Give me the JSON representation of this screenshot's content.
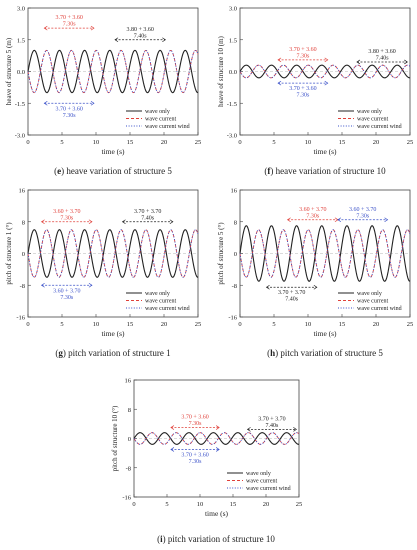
{
  "colors": {
    "wave_only": "#222222",
    "wave_current": "#e0403a",
    "wave_current_wind": "#3a50c8",
    "axis": "#444444",
    "zero_line": "#b5b5b5"
  },
  "chart_data": [
    {
      "id": "e",
      "type": "line",
      "caption_letter": "e",
      "caption": " heave variation of structure 5",
      "ylabel": "heave of structure 5 (m)",
      "xlabel": "time (s)",
      "xlim": [
        0,
        25
      ],
      "ylim": [
        -3.0,
        3.0
      ],
      "xticks": [
        0,
        5,
        10,
        15,
        20,
        25
      ],
      "yticks": [
        3.0,
        1.5,
        0.0,
        -1.5,
        -3.0
      ],
      "ytick_labels": [
        "3.0",
        "1.5",
        "0.0",
        "-1.5",
        "-3.0"
      ],
      "series": [
        {
          "name": "wave only",
          "style": "solid",
          "color_key": "wave_only",
          "amplitude": 1.0,
          "offset": 0.0,
          "period": 3.7,
          "phase": 0.0
        },
        {
          "name": "wave current",
          "style": "dash",
          "color_key": "wave_current",
          "amplitude": 1.0,
          "offset": 0.0,
          "period": 3.65,
          "phase": 0.5
        },
        {
          "name": "wave current wind",
          "style": "dot",
          "color_key": "wave_current_wind",
          "amplitude": 1.0,
          "offset": 0.0,
          "period": 3.65,
          "phase": 0.5
        }
      ],
      "annotations": [
        {
          "line1": "3.70 + 3.60",
          "line2": "7.30s",
          "color_key": "wave_current",
          "x1": 2.4,
          "x2": 9.7,
          "y": 2.05,
          "position": "above"
        },
        {
          "line1": "3.80 + 3.60",
          "line2": "7.40s",
          "color_key": "wave_only",
          "x1": 12.8,
          "x2": 20.2,
          "y": 1.5,
          "position": "above"
        },
        {
          "line1": "3.70 + 3.60",
          "line2": "7.30s",
          "color_key": "wave_current_wind",
          "x1": 2.4,
          "x2": 9.7,
          "y": -1.5,
          "position": "below"
        }
      ]
    },
    {
      "id": "f",
      "type": "line",
      "caption_letter": "f",
      "caption": " heave variation of structure 10",
      "ylabel": "heave of structure 10 (m)",
      "xlabel": "time (s)",
      "xlim": [
        0,
        25
      ],
      "ylim": [
        -3.0,
        3.0
      ],
      "xticks": [
        0,
        5,
        10,
        15,
        20,
        25
      ],
      "yticks": [
        3.0,
        1.5,
        0.0,
        -1.5,
        -3.0
      ],
      "ytick_labels": [
        "3.0",
        "1.5",
        "0.0",
        "-1.5",
        "-3.0"
      ],
      "series": [
        {
          "name": "wave only",
          "style": "solid",
          "color_key": "wave_only",
          "amplitude": 0.3,
          "offset": 0.0,
          "period": 3.7,
          "phase": 0.0
        },
        {
          "name": "wave current",
          "style": "dash",
          "color_key": "wave_current",
          "amplitude": 0.3,
          "offset": 0.0,
          "period": 3.65,
          "phase": 0.5
        },
        {
          "name": "wave current wind",
          "style": "dot",
          "color_key": "wave_current_wind",
          "amplitude": 0.3,
          "offset": 0.0,
          "period": 3.65,
          "phase": 0.5
        }
      ],
      "annotations": [
        {
          "line1": "3.70 + 3.60",
          "line2": "7.30s",
          "color_key": "wave_current",
          "x1": 5.6,
          "x2": 12.9,
          "y": 0.55,
          "position": "above"
        },
        {
          "line1": "3.80 + 3.60",
          "line2": "7.40s",
          "color_key": "wave_only",
          "x1": 17.2,
          "x2": 24.6,
          "y": 0.45,
          "position": "above"
        },
        {
          "line1": "3.70 + 3.60",
          "line2": "7.30s",
          "color_key": "wave_current_wind",
          "x1": 5.6,
          "x2": 12.9,
          "y": -0.55,
          "position": "below"
        }
      ]
    },
    {
      "id": "g",
      "type": "line",
      "caption_letter": "g",
      "caption": " pitch variation of structure 1",
      "ylabel": "pitch of structure 1 (°)",
      "xlabel": "time (s)",
      "xlim": [
        0,
        25
      ],
      "ylim": [
        -16,
        16
      ],
      "xticks": [
        0,
        5,
        10,
        15,
        20,
        25
      ],
      "yticks": [
        16,
        8,
        0,
        -8,
        -16
      ],
      "ytick_labels": [
        "16",
        "8",
        "0",
        "-8",
        "-16"
      ],
      "series": [
        {
          "name": "wave only",
          "style": "solid",
          "color_key": "wave_only",
          "amplitude": 6.0,
          "offset": 0.0,
          "period": 3.7,
          "phase": 0.0
        },
        {
          "name": "wave current",
          "style": "dash",
          "color_key": "wave_current",
          "amplitude": 6.0,
          "offset": 0.0,
          "period": 3.65,
          "phase": 0.5
        },
        {
          "name": "wave current wind",
          "style": "dot",
          "color_key": "wave_current_wind",
          "amplitude": 6.0,
          "offset": 0.0,
          "period": 3.65,
          "phase": 0.5
        }
      ],
      "annotations": [
        {
          "line1": "3.60 + 3.70",
          "line2": "7.30s",
          "color_key": "wave_current",
          "x1": 2.0,
          "x2": 9.4,
          "y": 8.0,
          "position": "above"
        },
        {
          "line1": "3.70 + 3.70",
          "line2": "7.40s",
          "color_key": "wave_only",
          "x1": 13.9,
          "x2": 21.3,
          "y": 8.0,
          "position": "above"
        },
        {
          "line1": "3.60 + 3.70",
          "line2": "7.30s",
          "color_key": "wave_current_wind",
          "x1": 2.0,
          "x2": 9.4,
          "y": -8.0,
          "position": "below"
        }
      ]
    },
    {
      "id": "h",
      "type": "line",
      "caption_letter": "h",
      "caption": " pitch variation of structure 5",
      "ylabel": "pitch of structure 5 (°)",
      "xlabel": "time (s)",
      "xlim": [
        0,
        25
      ],
      "ylim": [
        -16,
        16
      ],
      "xticks": [
        0,
        5,
        10,
        15,
        20,
        25
      ],
      "yticks": [
        16,
        8,
        0,
        -8,
        -16
      ],
      "ytick_labels": [
        "16",
        "8",
        "0",
        "-8",
        "-16"
      ],
      "series": [
        {
          "name": "wave only",
          "style": "solid",
          "color_key": "wave_only",
          "amplitude": 7.0,
          "offset": 0.0,
          "period": 3.7,
          "phase": 0.0
        },
        {
          "name": "wave current",
          "style": "dash",
          "color_key": "wave_current",
          "amplitude": 6.0,
          "offset": 0.0,
          "period": 3.65,
          "phase": 0.5
        },
        {
          "name": "wave current wind",
          "style": "dot",
          "color_key": "wave_current_wind",
          "amplitude": 6.0,
          "offset": 0.0,
          "period": 3.65,
          "phase": 0.5
        }
      ],
      "annotations": [
        {
          "line1": "3.60 + 3.70",
          "line2": "7.30s",
          "color_key": "wave_current",
          "x1": 7.0,
          "x2": 14.4,
          "y": 8.5,
          "position": "above"
        },
        {
          "line1": "3.60 + 3.70",
          "line2": "7.30s",
          "color_key": "wave_current_wind",
          "x1": 14.4,
          "x2": 21.7,
          "y": 8.5,
          "position": "above"
        },
        {
          "line1": "3.70 + 3.70",
          "line2": "7.40s",
          "color_key": "wave_only",
          "x1": 3.9,
          "x2": 11.3,
          "y": -8.5,
          "position": "below"
        }
      ]
    },
    {
      "id": "i",
      "type": "line",
      "caption_letter": "i",
      "caption": " pitch variation of structure 10",
      "ylabel": "pitch of structure 10 (°)",
      "xlabel": "time (s)",
      "xlim": [
        0,
        25
      ],
      "ylim": [
        -16,
        16
      ],
      "xticks": [
        0,
        5,
        10,
        15,
        20,
        25
      ],
      "yticks": [
        16,
        8,
        0,
        -8,
        -16
      ],
      "ytick_labels": [
        "16",
        "8",
        "0",
        "-8",
        "-16"
      ],
      "series": [
        {
          "name": "wave only",
          "style": "solid",
          "color_key": "wave_only",
          "amplitude": 1.6,
          "offset": 0.0,
          "period": 3.7,
          "phase": 0.0
        },
        {
          "name": "wave current",
          "style": "dash",
          "color_key": "wave_current",
          "amplitude": 1.6,
          "offset": 0.0,
          "period": 3.65,
          "phase": 0.5
        },
        {
          "name": "wave current wind",
          "style": "dot",
          "color_key": "wave_current_wind",
          "amplitude": 1.6,
          "offset": 0.0,
          "period": 3.65,
          "phase": 0.5
        }
      ],
      "annotations": [
        {
          "line1": "3.70 + 3.60",
          "line2": "7.30s",
          "color_key": "wave_current",
          "x1": 5.6,
          "x2": 12.9,
          "y": 3.0,
          "position": "above"
        },
        {
          "line1": "3.70 + 3.70",
          "line2": "7.40s",
          "color_key": "wave_only",
          "x1": 17.2,
          "x2": 24.6,
          "y": 2.5,
          "position": "above"
        },
        {
          "line1": "3.70 + 3.60",
          "line2": "7.30s",
          "color_key": "wave_current_wind",
          "x1": 5.6,
          "x2": 12.9,
          "y": -3.0,
          "position": "below"
        }
      ]
    }
  ]
}
